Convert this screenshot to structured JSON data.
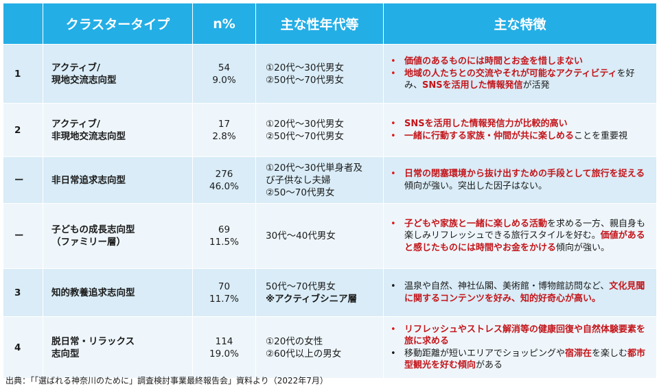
{
  "header": {
    "col_type": "クラスタータイプ",
    "col_n": "n%",
    "col_age": "主な性年代等",
    "col_features": "主な特徴"
  },
  "rows": [
    {
      "num": "1",
      "type_lines": [
        "アクティブ/",
        "現地交流志向型"
      ],
      "n": "54",
      "pct": "9.0%",
      "age_lines": [
        {
          "text": "①20代～30代男女",
          "bold": false
        },
        {
          "text": "②50代～70代男女",
          "bold": false
        }
      ],
      "features": [
        {
          "dot": "red",
          "parts": [
            {
              "t": "価値のあるものには時間とお金を惜しまない",
              "s": "red"
            }
          ]
        },
        {
          "dot": "red",
          "parts": [
            {
              "t": "地域の人たちとの交流やそれが可能なアクティビティ",
              "s": "red"
            },
            {
              "t": "を好み、",
              "s": "blk"
            },
            {
              "t": "SNSを活用した情報発信",
              "s": "red"
            },
            {
              "t": "が活発",
              "s": "blk"
            }
          ]
        }
      ]
    },
    {
      "num": "2",
      "type_lines": [
        "アクティブ/",
        "非現地交流志向型"
      ],
      "n": "17",
      "pct": "2.8%",
      "age_lines": [
        {
          "text": "①20代～30代男女",
          "bold": false
        },
        {
          "text": "②50代～70代男女",
          "bold": false
        }
      ],
      "features": [
        {
          "dot": "red",
          "parts": [
            {
              "t": "SNSを活用した情報発信力が比較的高い",
              "s": "red"
            }
          ]
        },
        {
          "dot": "red",
          "parts": [
            {
              "t": "一緒に行動する家族・仲間が共に楽しめる",
              "s": "red"
            },
            {
              "t": "ことを重要視",
              "s": "blk"
            }
          ]
        }
      ]
    },
    {
      "num": "ー",
      "type_lines": [
        "非日常追求志向型"
      ],
      "n": "276",
      "pct": "46.0%",
      "age_lines": [
        {
          "text": "①20代～30代単身者及",
          "bold": false
        },
        {
          "text": "び子供なし夫婦",
          "bold": false
        },
        {
          "text": "②50～70代男女",
          "bold": false
        }
      ],
      "features": [
        {
          "dot": "red",
          "parts": [
            {
              "t": "日常の閉塞環境から抜け出すための手段として旅行を捉える",
              "s": "red"
            },
            {
              "t": "傾向が強い。突出した因子はない。",
              "s": "blk"
            }
          ]
        }
      ]
    },
    {
      "num": "ー",
      "type_lines": [
        "子どもの成長志向型",
        "（ファミリー層）"
      ],
      "n": "69",
      "pct": "11.5%",
      "age_lines": [
        {
          "text": "30代～40代男女",
          "bold": false
        }
      ],
      "features": [
        {
          "dot": "red",
          "parts": [
            {
              "t": "子どもや家族と一緒に楽しめる活動",
              "s": "red"
            },
            {
              "t": "を求める一方、親自身も楽しみリフレッシュできる旅行スタイルを好む。",
              "s": "blk"
            },
            {
              "t": "価値があると感じたものには時間やお金をかける",
              "s": "red"
            },
            {
              "t": "傾向が強い。",
              "s": "blk"
            }
          ]
        }
      ]
    },
    {
      "num": "3",
      "type_lines": [
        "知的教養追求志向型"
      ],
      "n": "70",
      "pct": "11.7%",
      "age_lines": [
        {
          "text": "50代～70代男女",
          "bold": false
        },
        {
          "text": "※アクティブシニア層",
          "bold": true
        }
      ],
      "features": [
        {
          "dot": "blk",
          "parts": [
            {
              "t": "温泉や自然、神社仏閣、美術館・博物館訪問など、",
              "s": "blk"
            },
            {
              "t": "文化見聞に関するコンテンツを好み、知的好奇心が高い。",
              "s": "red"
            }
          ]
        }
      ]
    },
    {
      "num": "4",
      "type_lines": [
        "脱日常・リラックス",
        "志向型"
      ],
      "n": "114",
      "pct": "19.0%",
      "age_lines": [
        {
          "text": "①20代の女性",
          "bold": false
        },
        {
          "text": "②60代以上の男女",
          "bold": false
        }
      ],
      "features": [
        {
          "dot": "red",
          "parts": [
            {
              "t": "リフレッシュやストレス解消等の健康回復や自然体験要素を旅に求める",
              "s": "red"
            }
          ]
        },
        {
          "dot": "blk",
          "parts": [
            {
              "t": "移動距離が短いエリアでショッピングや",
              "s": "blk"
            },
            {
              "t": "宿滞在",
              "s": "red"
            },
            {
              "t": "を楽しむ",
              "s": "blk"
            },
            {
              "t": "都市型観光を好む傾向",
              "s": "red"
            },
            {
              "t": "がある",
              "s": "blk"
            }
          ]
        }
      ]
    }
  ],
  "bullet_char": "•",
  "source": "出典：「「選ばれる神奈川のために」調査検討事業最終報告会」資料より（2022年7月）"
}
